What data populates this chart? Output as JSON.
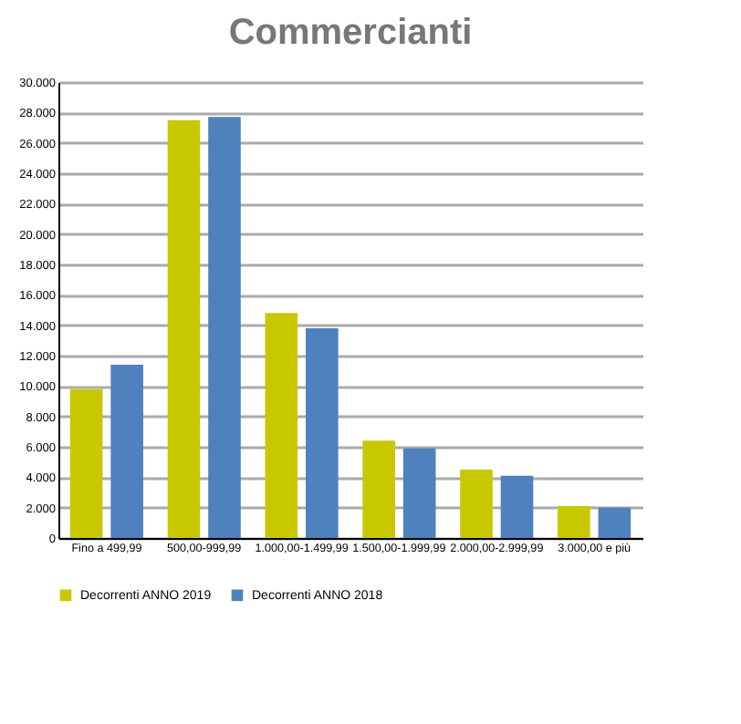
{
  "chart_data": {
    "type": "bar",
    "title": "Commercianti",
    "categories": [
      "Fino a 499,99",
      "500,00-999,99",
      "1.000,00-1.499,99",
      "1.500,00-1.999,99",
      "2.000,00-2.999,99",
      "3.000,00 e più"
    ],
    "series": [
      {
        "name": "Decorrenti ANNO 2019",
        "color": "#c8c800",
        "values": [
          9800,
          27500,
          14800,
          6400,
          4500,
          2100
        ]
      },
      {
        "name": "Decorrenti ANNO 2018",
        "color": "#4f81bd",
        "values": [
          11400,
          27700,
          13800,
          5900,
          4100,
          2000
        ]
      }
    ],
    "ylim": [
      0,
      30000
    ],
    "yticks": [
      {
        "value": 0,
        "label": "0"
      },
      {
        "value": 2000,
        "label": "2.000"
      },
      {
        "value": 4000,
        "label": "4.000"
      },
      {
        "value": 6000,
        "label": "6.000"
      },
      {
        "value": 8000,
        "label": "8.000"
      },
      {
        "value": 10000,
        "label": "10.000"
      },
      {
        "value": 12000,
        "label": "12.000"
      },
      {
        "value": 14000,
        "label": "14.000"
      },
      {
        "value": 16000,
        "label": "16.000"
      },
      {
        "value": 18000,
        "label": "18.000"
      },
      {
        "value": 20000,
        "label": "20.000"
      },
      {
        "value": 22000,
        "label": "22.000"
      },
      {
        "value": 24000,
        "label": "24.000"
      },
      {
        "value": 26000,
        "label": "26.000"
      },
      {
        "value": 28000,
        "label": "28.000"
      },
      {
        "value": 30000,
        "label": "30.000"
      }
    ],
    "grid": "y",
    "legend": "bottom"
  }
}
